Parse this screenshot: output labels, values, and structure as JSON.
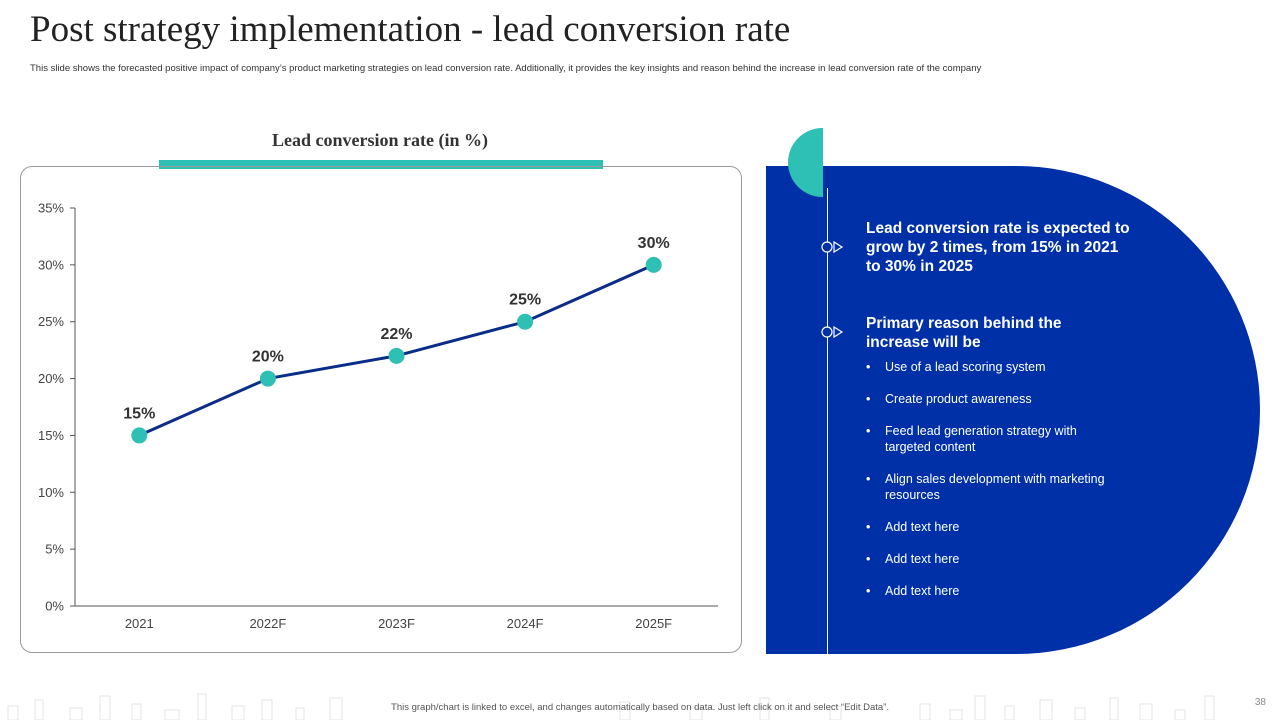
{
  "title": "Post strategy implementation - lead conversion rate",
  "subtitle": "This slide shows the forecasted positive impact of company’s product marketing strategies on lead conversion rate. Additionally, it provides the key insights and reason behind the increase in lead  conversion rate of the company",
  "chart_heading": "Lead conversion rate (in %)",
  "chart_data": {
    "type": "line",
    "title": "Lead conversion rate (in %)",
    "categories": [
      "2021",
      "2022F",
      "2023F",
      "2024F",
      "2025F"
    ],
    "values": [
      15,
      20,
      22,
      25,
      30
    ],
    "data_labels": [
      "15%",
      "20%",
      "22%",
      "25%",
      "30%"
    ],
    "y_ticks": [
      "0%",
      "5%",
      "10%",
      "15%",
      "20%",
      "25%",
      "30%",
      "35%"
    ],
    "ylim": [
      0,
      35
    ],
    "xlabel": "",
    "ylabel": "",
    "grid": false,
    "legend": "none",
    "line_color": "#0a2d8a",
    "marker_color": "#2ebfb5"
  },
  "panel": {
    "insight_1": "Lead conversion rate is expected to grow by 2 times, from 15% in 2021 to 30% in 2025",
    "insight_2": "Primary reason behind the increase will be",
    "reasons": [
      "Use of a lead scoring system",
      "Create product awareness",
      "Feed lead generation strategy with targeted content",
      "Align sales development with marketing resources",
      "Add text here",
      "Add text here",
      "Add text here"
    ],
    "bullet_glyph": "•"
  },
  "footer_note": "This graph/chart is linked to excel, and changes automatically based on data. Just left click on it and select “Edit Data”.",
  "page_number": "38",
  "colors": {
    "accent_teal": "#2ebfb5",
    "panel_blue": "#0030a8",
    "line_blue": "#0a2d8a"
  }
}
